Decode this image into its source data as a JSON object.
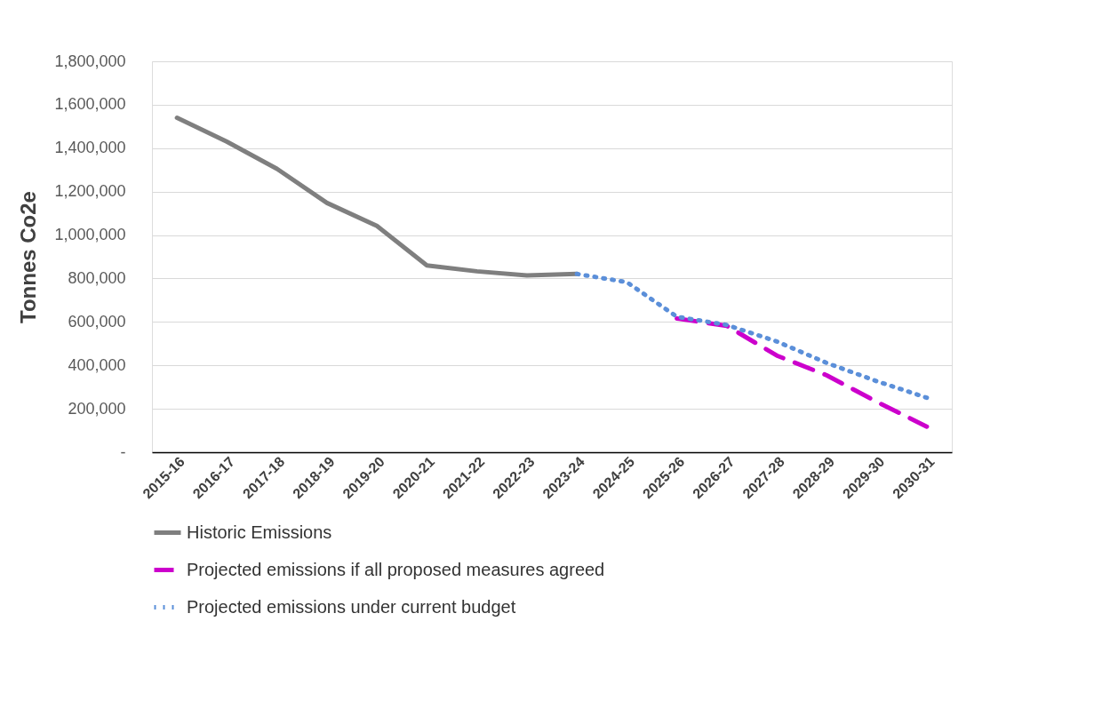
{
  "chart_data": {
    "type": "line",
    "ylabel": "Tonnes Co2e",
    "categories": [
      "2015-16",
      "2016-17",
      "2017-18",
      "2018-19",
      "2019-20",
      "2020-21",
      "2021-22",
      "2022-23",
      "2023-24",
      "2024-25",
      "2025-26",
      "2026-27",
      "2027-28",
      "2028-29",
      "2029-30",
      "2030-31"
    ],
    "series": [
      {
        "name": "Historic Emissions",
        "color": "#7f7f7f",
        "line_style": "solid",
        "values": [
          1540000,
          1430000,
          1305000,
          1148000,
          1042000,
          860000,
          833000,
          814000,
          821000,
          null,
          null,
          null,
          null,
          null,
          null,
          null
        ]
      },
      {
        "name": "Projected emissions if all proposed measures agreed",
        "color": "#cc00cc",
        "line_style": "dashed",
        "values": [
          null,
          null,
          null,
          null,
          null,
          null,
          null,
          null,
          null,
          null,
          616000,
          582000,
          445000,
          354000,
          232000,
          118000
        ]
      },
      {
        "name": "Projected emissions under current budget",
        "color": "#5b8fd9",
        "line_style": "dotted",
        "values": [
          null,
          null,
          null,
          null,
          null,
          null,
          null,
          null,
          821000,
          783000,
          624000,
          586000,
          510000,
          411000,
          327000,
          251000
        ]
      }
    ],
    "ylim": [
      0,
      1800000
    ],
    "yticks": [
      {
        "value": 0,
        "label": "-"
      },
      {
        "value": 200000,
        "label": "200,000"
      },
      {
        "value": 400000,
        "label": "400,000"
      },
      {
        "value": 600000,
        "label": "600,000"
      },
      {
        "value": 800000,
        "label": "800,000"
      },
      {
        "value": 1000000,
        "label": "1,000,000"
      },
      {
        "value": 1200000,
        "label": "1,200,000"
      },
      {
        "value": 1400000,
        "label": "1,400,000"
      },
      {
        "value": 1600000,
        "label": "1,600,000"
      },
      {
        "value": 1800000,
        "label": "1,800,000"
      }
    ],
    "grid": "y",
    "legend": "bottom",
    "marker": "none"
  }
}
